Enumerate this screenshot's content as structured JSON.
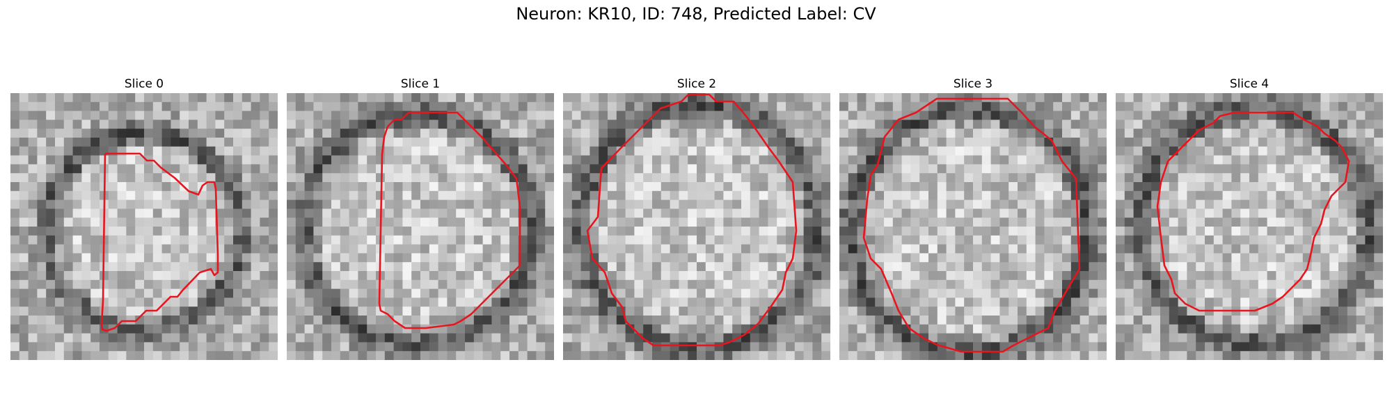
{
  "figure": {
    "title": "Neuron: KR10, ID: 748, Predicted Label: CV",
    "outline_color": "#e8141e"
  },
  "panels": [
    {
      "title": "Slice 0"
    },
    {
      "title": "Slice 1"
    },
    {
      "title": "Slice 2"
    },
    {
      "title": "Slice 3"
    },
    {
      "title": "Slice 4"
    }
  ]
}
